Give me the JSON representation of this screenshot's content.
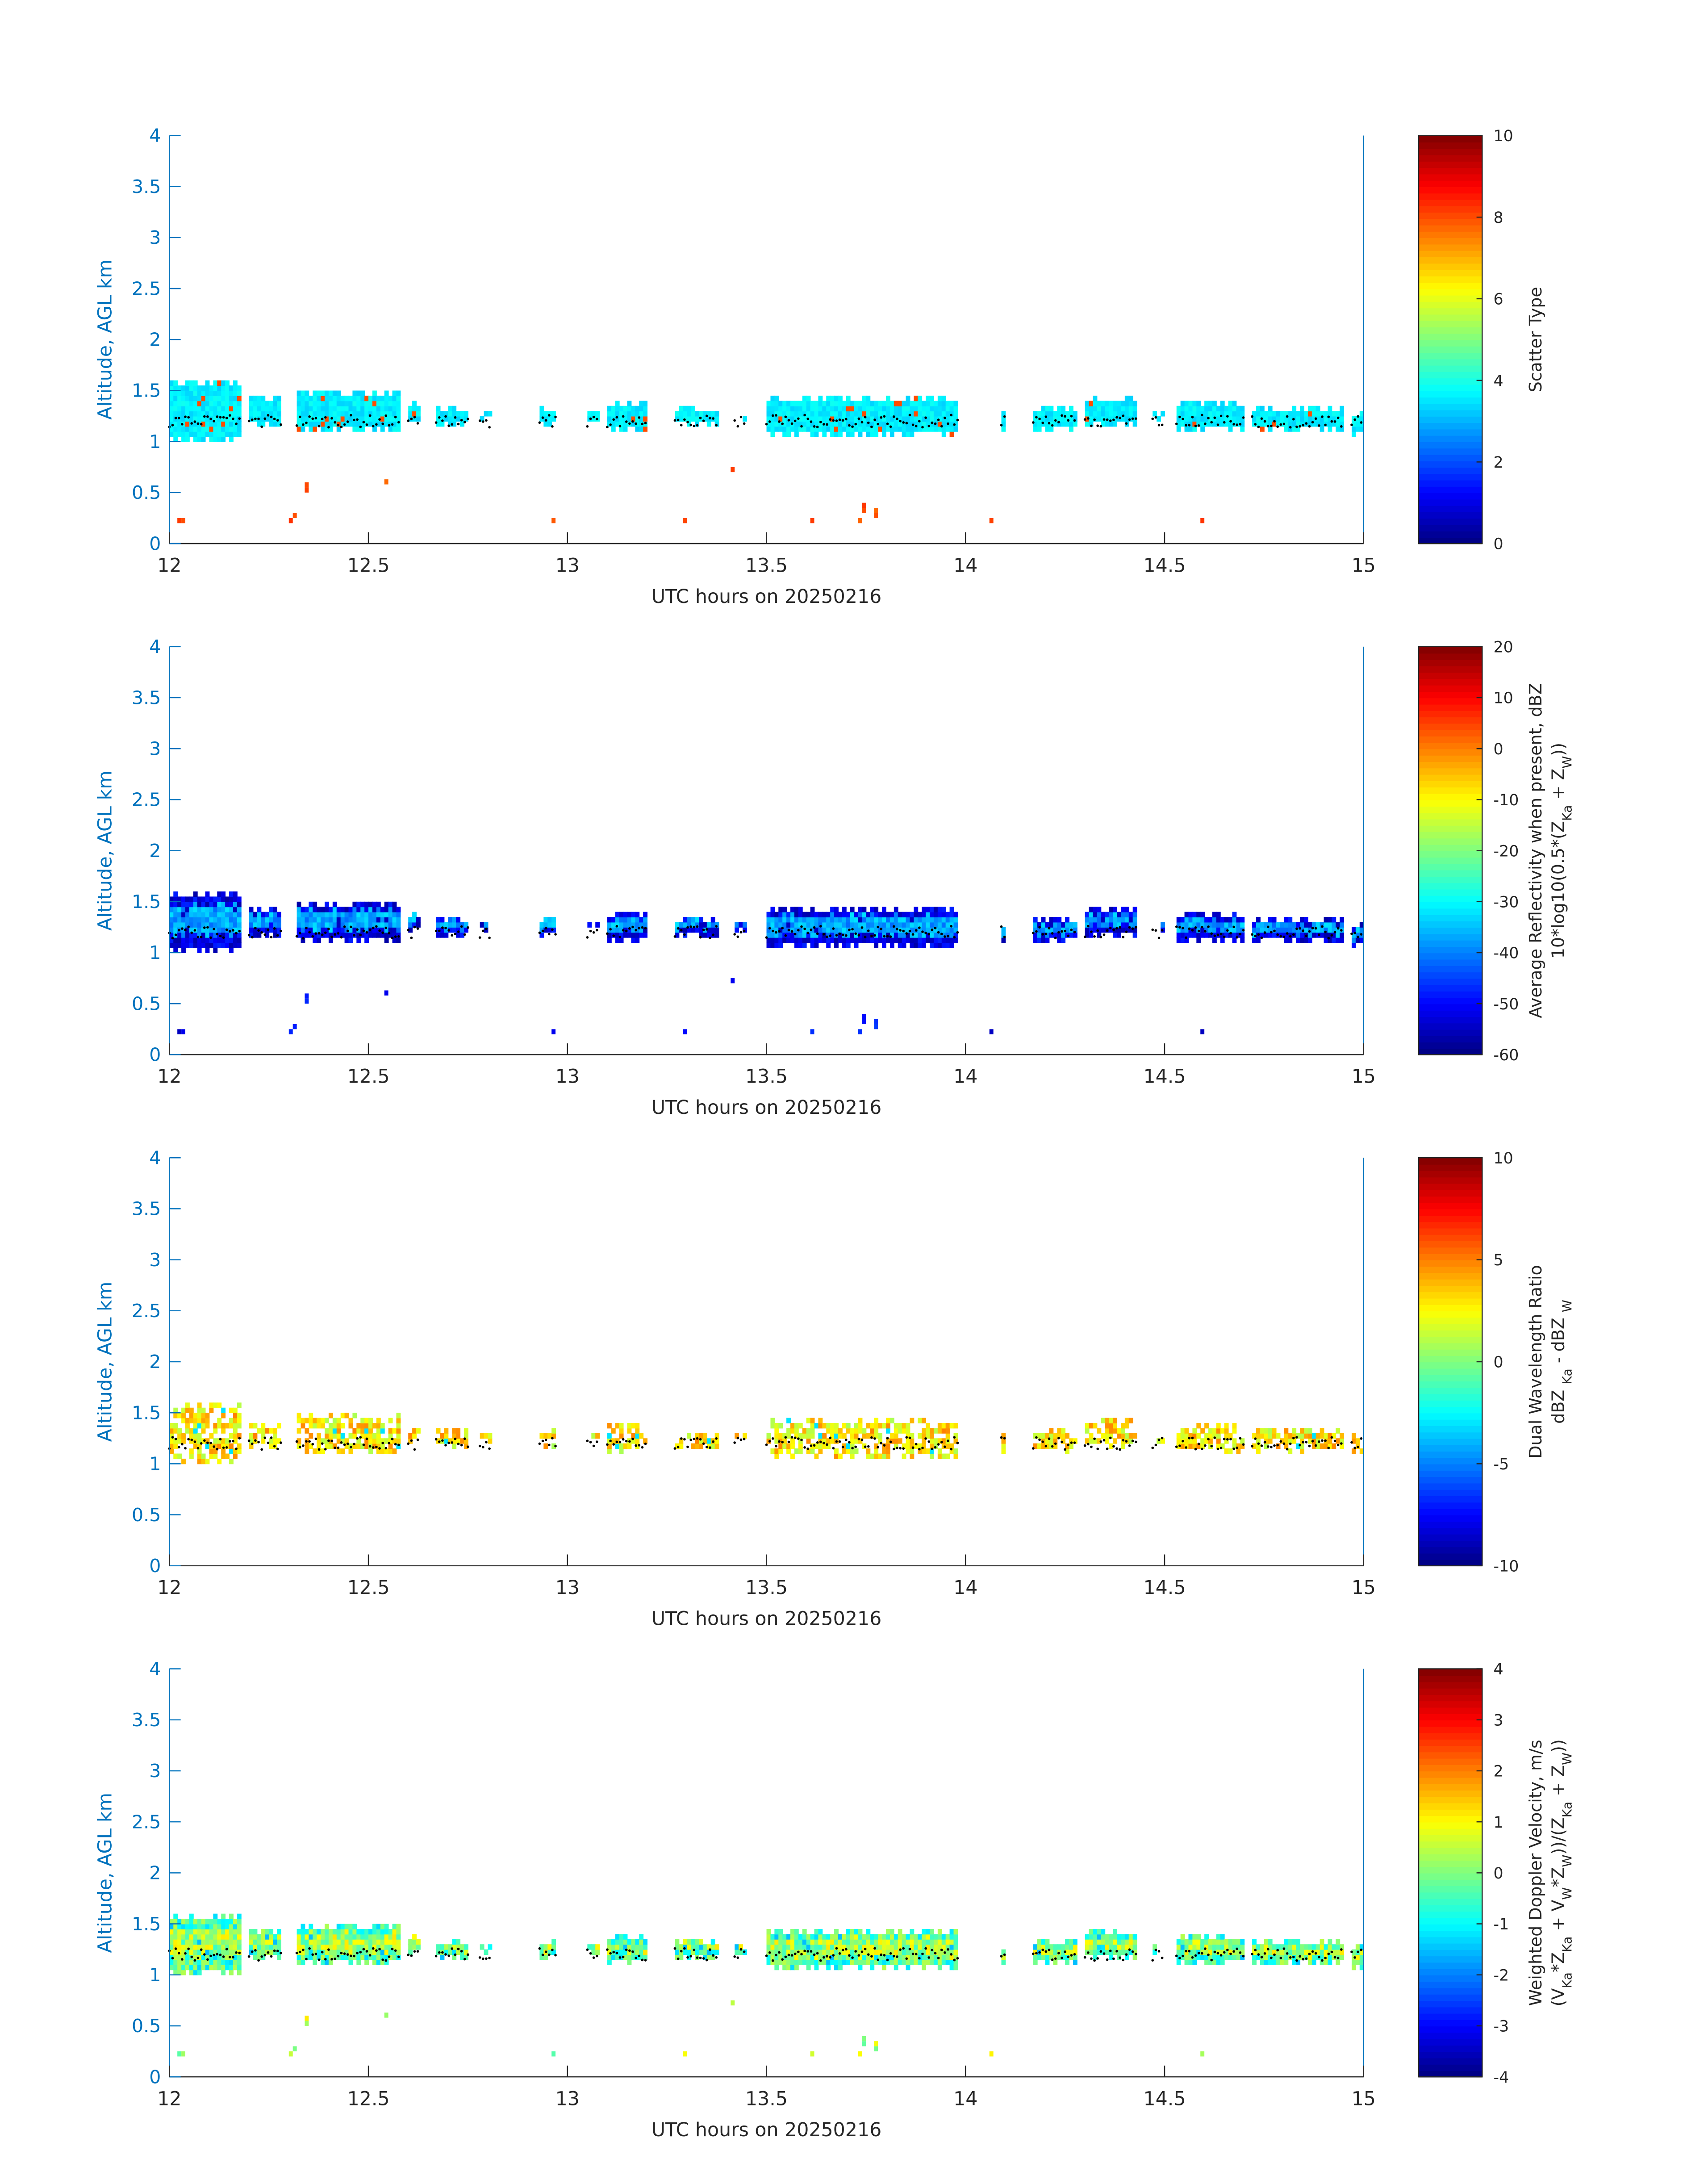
{
  "chart_data": [
    {
      "type": "heatmap",
      "name": "scatter-type",
      "xlabel": "UTC hours on 20250216",
      "ylabel": "Altitude, AGL km",
      "xlim": [
        12,
        15
      ],
      "ylim": [
        0,
        4
      ],
      "xticks": [
        "12",
        "12.5",
        "13",
        "13.5",
        "14",
        "14.5",
        "15"
      ],
      "yticks": [
        "0",
        "0.5",
        "1",
        "1.5",
        "2",
        "2.5",
        "3",
        "3.5",
        "4"
      ],
      "colorbar": {
        "label": [
          [
            "Scatter Type"
          ]
        ],
        "clim": [
          0,
          10
        ],
        "ticks": [
          "0",
          "2",
          "4",
          "6",
          "8",
          "10"
        ]
      },
      "cloud_value": 3.6,
      "cloud_spread": 0.3,
      "core_value": 3.6,
      "low_value": 8,
      "edge_value": 8
    },
    {
      "type": "heatmap",
      "name": "reflectivity",
      "xlabel": "UTC hours on 20250216",
      "ylabel": "Altitude, AGL km",
      "xlim": [
        12,
        15
      ],
      "ylim": [
        0,
        4
      ],
      "xticks": [
        "12",
        "12.5",
        "13",
        "13.5",
        "14",
        "14.5",
        "15"
      ],
      "yticks": [
        "0",
        "0.5",
        "1",
        "1.5",
        "2",
        "2.5",
        "3",
        "3.5",
        "4"
      ],
      "colorbar": {
        "label": [
          [
            "Average Reflectivity when present, dBZ"
          ],
          [
            "10*log10(0.5*(Z",
            "Ka",
            " + Z",
            "W",
            "))"
          ]
        ],
        "clim": [
          -60,
          20
        ],
        "ticks": [
          "-60",
          "-50",
          "-40",
          "-30",
          "-20",
          "-10",
          "0",
          "10",
          "20"
        ]
      },
      "cloud_value": -52,
      "cloud_spread": 5,
      "core_value": -37,
      "low_value": -50,
      "edge_value": -55
    },
    {
      "type": "heatmap",
      "name": "dual-wavelength-ratio",
      "xlabel": "UTC hours on 20250216",
      "ylabel": "Altitude, AGL km",
      "xlim": [
        12,
        15
      ],
      "ylim": [
        0,
        4
      ],
      "xticks": [
        "12",
        "12.5",
        "13",
        "13.5",
        "14",
        "14.5",
        "15"
      ],
      "yticks": [
        "0",
        "0.5",
        "1",
        "1.5",
        "2",
        "2.5",
        "3",
        "3.5",
        "4"
      ],
      "colorbar": {
        "label": [
          [
            "Dual Wavelength Ratio"
          ],
          [
            "dBZ ",
            "Ka",
            " - dBZ ",
            "W"
          ]
        ],
        "clim": [
          -10,
          10
        ],
        "ticks": [
          "-10",
          "-5",
          "0",
          "5",
          "10"
        ]
      },
      "cloud_value": 2.8,
      "cloud_spread": 2,
      "core_value": 3,
      "low_value": null,
      "edge_value": -3,
      "thin": true
    },
    {
      "type": "heatmap",
      "name": "doppler-velocity",
      "xlabel": "UTC hours on 20250216",
      "ylabel": "Altitude, AGL km",
      "xlim": [
        12,
        15
      ],
      "ylim": [
        0,
        4
      ],
      "xticks": [
        "12",
        "12.5",
        "13",
        "13.5",
        "14",
        "14.5",
        "15"
      ],
      "yticks": [
        "0",
        "0.5",
        "1",
        "1.5",
        "2",
        "2.5",
        "3",
        "3.5",
        "4"
      ],
      "colorbar": {
        "label": [
          [
            "Weighted Doppler Velocity, m/s"
          ],
          [
            "(V",
            "Ka",
            "*Z",
            "Ka",
            " + V",
            "W",
            "*Z",
            "W",
            "))/(Z",
            "Ka",
            " + Z",
            "W",
            "))"
          ]
        ],
        "clim": [
          -4,
          4
        ],
        "ticks": [
          "-4",
          "-3",
          "-2",
          "-1",
          "0",
          "1",
          "2",
          "3",
          "4"
        ]
      },
      "cloud_value": -0.4,
      "cloud_spread": 0.9,
      "core_value": 0.3,
      "low_value": 0.5,
      "edge_value": -1.5
    }
  ],
  "cloud_segments_hours_km": [
    [
      12.0,
      12.18,
      1.0,
      1.6
    ],
    [
      12.2,
      12.28,
      1.15,
      1.45
    ],
    [
      12.32,
      12.58,
      1.1,
      1.5
    ],
    [
      12.6,
      12.63,
      1.2,
      1.4
    ],
    [
      12.67,
      12.75,
      1.15,
      1.35
    ],
    [
      12.78,
      12.81,
      1.2,
      1.3
    ],
    [
      12.93,
      12.97,
      1.15,
      1.35
    ],
    [
      13.05,
      13.08,
      1.2,
      1.3
    ],
    [
      13.1,
      13.2,
      1.1,
      1.4
    ],
    [
      13.27,
      13.38,
      1.15,
      1.35
    ],
    [
      13.42,
      13.45,
      1.2,
      1.3
    ],
    [
      13.5,
      13.98,
      1.05,
      1.45
    ],
    [
      14.09,
      14.1,
      1.1,
      1.3
    ],
    [
      14.17,
      14.28,
      1.1,
      1.35
    ],
    [
      14.3,
      14.43,
      1.15,
      1.45
    ],
    [
      14.47,
      14.5,
      1.2,
      1.3
    ],
    [
      14.53,
      14.7,
      1.1,
      1.4
    ],
    [
      14.72,
      14.95,
      1.1,
      1.35
    ],
    [
      14.97,
      15.0,
      1.05,
      1.3
    ]
  ],
  "low_echoes_hours_km": [
    [
      12.02,
      0.2
    ],
    [
      12.03,
      0.2
    ],
    [
      12.3,
      0.2
    ],
    [
      12.31,
      0.25
    ],
    [
      12.34,
      0.5
    ],
    [
      12.34,
      0.55
    ],
    [
      12.54,
      0.58
    ],
    [
      12.96,
      0.2
    ],
    [
      13.29,
      0.2
    ],
    [
      13.41,
      0.7
    ],
    [
      13.61,
      0.2
    ],
    [
      13.73,
      0.2
    ],
    [
      13.74,
      0.3
    ],
    [
      13.74,
      0.35
    ],
    [
      13.77,
      0.25
    ],
    [
      13.77,
      0.3
    ],
    [
      14.06,
      0.2
    ],
    [
      14.59,
      0.2
    ]
  ]
}
